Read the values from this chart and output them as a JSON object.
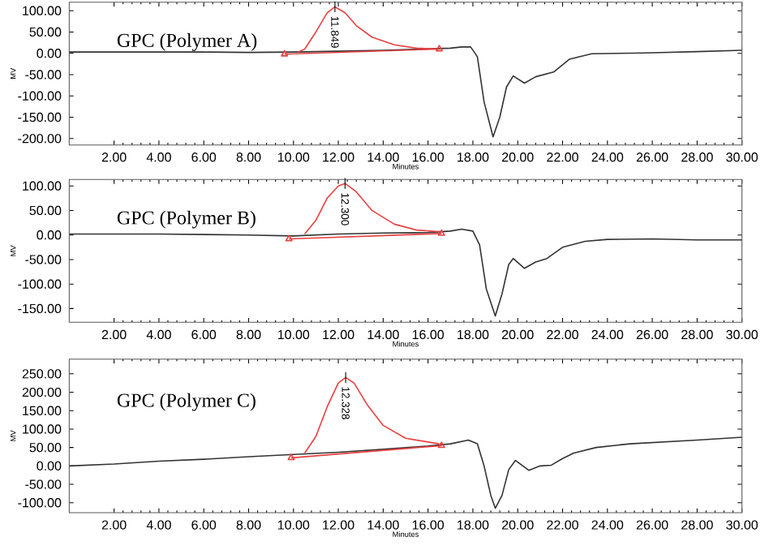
{
  "chart_data": [
    {
      "type": "line",
      "annotations": [
        "GPC (Polymer A)",
        {
          "text": "11.849",
          "x": 11.849,
          "y": 109
        }
      ],
      "xlabel": "Minutes",
      "ylabel": "MV",
      "xlim": [
        0,
        30
      ],
      "xticks": [
        {
          "value": 2,
          "label": "2.00"
        },
        {
          "value": 4,
          "label": "4.00"
        },
        {
          "value": 6,
          "label": "6.00"
        },
        {
          "value": 8,
          "label": "8.00"
        },
        {
          "value": 10,
          "label": "10.00"
        },
        {
          "value": 12,
          "label": "12.00"
        },
        {
          "value": 14,
          "label": "14.00"
        },
        {
          "value": 16,
          "label": "16.00"
        },
        {
          "value": 18,
          "label": "18.00"
        },
        {
          "value": 20,
          "label": "20.00"
        },
        {
          "value": 22,
          "label": "22.00"
        },
        {
          "value": 24,
          "label": "24.00"
        },
        {
          "value": 26,
          "label": "26.00"
        },
        {
          "value": 28,
          "label": "28.00"
        },
        {
          "value": 30,
          "label": "30.00"
        }
      ],
      "ylim": [
        -215,
        120
      ],
      "yticks": [
        {
          "value": -200,
          "label": "-200.00"
        },
        {
          "value": -150,
          "label": "-150.00"
        },
        {
          "value": -100,
          "label": "-100.00"
        },
        {
          "value": -50,
          "label": "-50.00"
        },
        {
          "value": 0,
          "label": "0.00"
        },
        {
          "value": 50,
          "label": "50.00"
        },
        {
          "value": 100,
          "label": "100.00"
        }
      ],
      "series": [
        {
          "color": "#333333",
          "x": [
            0,
            2,
            4,
            6,
            8,
            10,
            12,
            14,
            16,
            17,
            17.5,
            17.9,
            18.2,
            18.5,
            18.9,
            19.2,
            19.5,
            19.8,
            20.3,
            20.8,
            21.6,
            22.3,
            23.3,
            25.7,
            28,
            30
          ],
          "values": [
            3,
            3,
            3,
            3,
            2,
            3,
            5,
            7,
            null,
            12,
            15,
            15,
            -8,
            -114,
            -196,
            -150,
            -79,
            -53,
            -70,
            -55,
            -44,
            -14,
            -1,
            1,
            4,
            7
          ]
        },
        {
          "color": "#e84040",
          "x": [
            10.2,
            10.5,
            11.0,
            11.5,
            11.849,
            12.3,
            12.8,
            13.5,
            14.5,
            15.5,
            16.5
          ],
          "values": [
            3,
            10,
            50,
            95,
            109,
            95,
            65,
            38,
            20,
            12,
            10
          ]
        },
        {
          "color": "#e84040",
          "marker": "triangle",
          "x": [
            9.6,
            16.5
          ],
          "values": [
            -2,
            10
          ]
        }
      ]
    },
    {
      "type": "line",
      "annotations": [
        "GPC (Polymer B)",
        {
          "text": "12.300",
          "x": 12.3,
          "y": 105
        }
      ],
      "xlabel": "Minutes",
      "ylabel": "MV",
      "xlim": [
        0,
        30
      ],
      "xticks": [
        {
          "value": 2,
          "label": "2.00"
        },
        {
          "value": 4,
          "label": "4.00"
        },
        {
          "value": 6,
          "label": "6.00"
        },
        {
          "value": 8,
          "label": "8.00"
        },
        {
          "value": 10,
          "label": "10.00"
        },
        {
          "value": 12,
          "label": "12.00"
        },
        {
          "value": 14,
          "label": "14.00"
        },
        {
          "value": 16,
          "label": "16.00"
        },
        {
          "value": 18,
          "label": "18.00"
        },
        {
          "value": 20,
          "label": "20.00"
        },
        {
          "value": 22,
          "label": "22.00"
        },
        {
          "value": 24,
          "label": "24.00"
        },
        {
          "value": 26,
          "label": "26.00"
        },
        {
          "value": 28,
          "label": "28.00"
        },
        {
          "value": 30,
          "label": "30.00"
        }
      ],
      "ylim": [
        -178,
        113
      ],
      "yticks": [
        {
          "value": -150,
          "label": "-150.00"
        },
        {
          "value": -100,
          "label": "-100.00"
        },
        {
          "value": -50,
          "label": "-50.00"
        },
        {
          "value": 0,
          "label": "0.00"
        },
        {
          "value": 50,
          "label": "50.00"
        },
        {
          "value": 100,
          "label": "100.00"
        }
      ],
      "series": [
        {
          "color": "#333333",
          "x": [
            0,
            2,
            4,
            6,
            8,
            10,
            12,
            14,
            16,
            17,
            17.5,
            18,
            18.3,
            18.6,
            19.0,
            19.3,
            19.6,
            19.8,
            20.3,
            20.8,
            21.3,
            22,
            23,
            24,
            26,
            28,
            30
          ],
          "values": [
            2,
            2,
            2,
            1,
            0,
            -2,
            2,
            4,
            5,
            8,
            12,
            8,
            -20,
            -110,
            -165,
            -120,
            -60,
            -48,
            -68,
            -55,
            -48,
            -25,
            -13,
            -9,
            -8,
            -10,
            -10
          ]
        },
        {
          "color": "#e84040",
          "x": [
            10.5,
            11.0,
            11.5,
            12.0,
            12.3,
            12.8,
            13.5,
            14.5,
            15.5,
            16.5
          ],
          "values": [
            2,
            30,
            75,
            100,
            105,
            88,
            50,
            22,
            10,
            7
          ]
        },
        {
          "color": "#e84040",
          "marker": "triangle",
          "x": [
            9.8,
            16.6
          ],
          "values": [
            -8,
            3
          ]
        }
      ]
    },
    {
      "type": "line",
      "annotations": [
        "GPC (Polymer C)",
        {
          "text": "12.328",
          "x": 12.328,
          "y": 240
        }
      ],
      "xlabel": "Minutes",
      "ylabel": "MV",
      "xlim": [
        0,
        30
      ],
      "xticks": [
        {
          "value": 2,
          "label": "2.00"
        },
        {
          "value": 4,
          "label": "4.00"
        },
        {
          "value": 6,
          "label": "6.00"
        },
        {
          "value": 8,
          "label": "8.00"
        },
        {
          "value": 10,
          "label": "10.00"
        },
        {
          "value": 12,
          "label": "12.00"
        },
        {
          "value": 14,
          "label": "14.00"
        },
        {
          "value": 16,
          "label": "16.00"
        },
        {
          "value": 18,
          "label": "18.00"
        },
        {
          "value": 20,
          "label": "20.00"
        },
        {
          "value": 22,
          "label": "22.00"
        },
        {
          "value": 24,
          "label": "24.00"
        },
        {
          "value": 26,
          "label": "26.00"
        },
        {
          "value": 28,
          "label": "28.00"
        },
        {
          "value": 30,
          "label": "30.00"
        }
      ],
      "ylim": [
        -127,
        290
      ],
      "yticks": [
        {
          "value": -100,
          "label": "-100.00"
        },
        {
          "value": -50,
          "label": "-50.00"
        },
        {
          "value": 0,
          "label": "0.00"
        },
        {
          "value": 50,
          "label": "50.00"
        },
        {
          "value": 100,
          "label": "100.00"
        },
        {
          "value": 150,
          "label": "150.00"
        },
        {
          "value": 200,
          "label": "200.00"
        },
        {
          "value": 250,
          "label": "250.00"
        }
      ],
      "series": [
        {
          "color": "#333333",
          "x": [
            0,
            2,
            4,
            6,
            8,
            10,
            12,
            14,
            16,
            17,
            17.8,
            18.2,
            18.5,
            18.8,
            19.0,
            19.3,
            19.6,
            19.9,
            20.5,
            21,
            21.5,
            22,
            22.5,
            23.5,
            25,
            28,
            30
          ],
          "values": [
            0,
            5,
            13,
            18,
            25,
            31,
            37,
            45,
            54,
            60,
            70,
            60,
            0,
            -80,
            -115,
            -80,
            -10,
            15,
            -12,
            0,
            2,
            20,
            35,
            50,
            60,
            70,
            78
          ]
        },
        {
          "color": "#e84040",
          "x": [
            10.5,
            11.0,
            11.5,
            12.0,
            12.328,
            12.7,
            13.3,
            14,
            15,
            16.5
          ],
          "values": [
            35,
            80,
            160,
            225,
            240,
            225,
            165,
            110,
            75,
            60
          ]
        },
        {
          "color": "#e84040",
          "marker": "triangle",
          "x": [
            9.9,
            16.6
          ],
          "values": [
            22,
            55
          ]
        }
      ]
    }
  ]
}
